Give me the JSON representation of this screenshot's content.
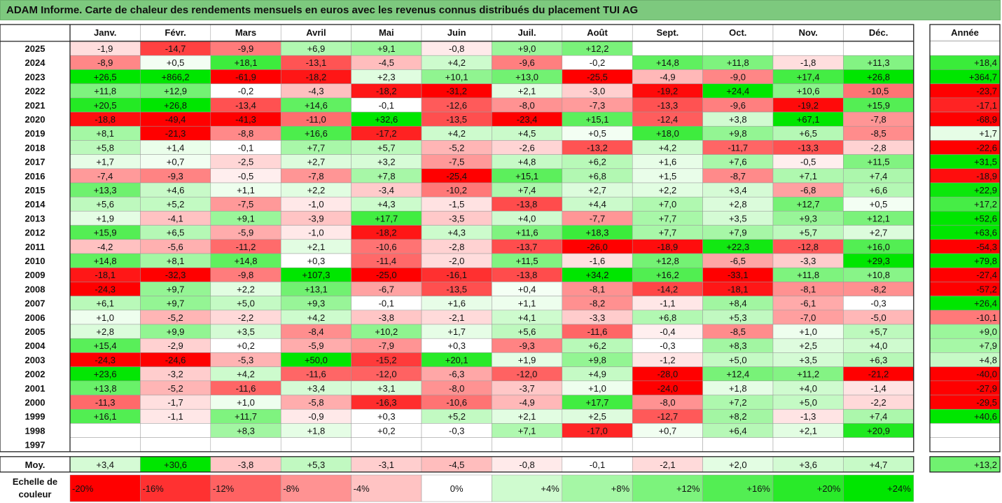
{
  "title": "ADAM Informe. Carte de chaleur des rendements mensuels en euros avec les revenus connus distribués du placement TUI AG",
  "colors": {
    "title_bg": "#7dc97e",
    "max_green": "#00e600",
    "max_red": "#ff0000"
  },
  "chart_data": {
    "type": "heatmap",
    "months": [
      "Janv.",
      "Févr.",
      "Mars",
      "Avril",
      "Mai",
      "Juin",
      "Juil.",
      "Août",
      "Sept.",
      "Oct.",
      "Nov.",
      "Déc."
    ],
    "year_header": "Année",
    "rows": [
      {
        "year": "2025",
        "values": [
          "-1,9",
          "-14,7",
          "-9,9",
          "+6,9",
          "+9,1",
          "-0,8",
          "+9,0",
          "+12,2",
          "",
          "",
          "",
          ""
        ],
        "annual": ""
      },
      {
        "year": "2024",
        "values": [
          "-8,9",
          "+0,5",
          "+18,1",
          "-13,1",
          "-4,5",
          "+4,2",
          "-9,6",
          "-0,2",
          "+14,8",
          "+11,8",
          "-1,8",
          "+11,3"
        ],
        "annual": "+18,4"
      },
      {
        "year": "2023",
        "values": [
          "+26,5",
          "+866,2",
          "-61,9",
          "-18,2",
          "+2,3",
          "+10,1",
          "+13,0",
          "-25,5",
          "-4,9",
          "-9,0",
          "+17,4",
          "+26,8"
        ],
        "annual": "+364,7"
      },
      {
        "year": "2022",
        "values": [
          "+11,8",
          "+12,9",
          "-0,2",
          "-4,3",
          "-18,2",
          "-31,2",
          "+2,1",
          "-3,0",
          "-19,2",
          "+24,4",
          "+10,6",
          "-10,5"
        ],
        "annual": "-23,7"
      },
      {
        "year": "2021",
        "values": [
          "+20,5",
          "+26,8",
          "-13,4",
          "+14,6",
          "-0,1",
          "-12,6",
          "-8,0",
          "-7,3",
          "-13,3",
          "-9,6",
          "-19,2",
          "+15,9"
        ],
        "annual": "-17,1"
      },
      {
        "year": "2020",
        "values": [
          "-18,8",
          "-49,4",
          "-41,3",
          "-11,0",
          "+32,6",
          "-13,5",
          "-23,4",
          "+15,1",
          "-12,4",
          "+3,8",
          "+67,1",
          "-7,8"
        ],
        "annual": "-68,9"
      },
      {
        "year": "2019",
        "values": [
          "+8,1",
          "-21,3",
          "-8,8",
          "+16,6",
          "-17,2",
          "+4,2",
          "+4,5",
          "+0,5",
          "+18,0",
          "+9,8",
          "+6,5",
          "-8,5"
        ],
        "annual": "+1,7"
      },
      {
        "year": "2018",
        "values": [
          "+5,8",
          "+1,4",
          "-0,1",
          "+7,7",
          "+5,7",
          "-5,2",
          "-2,6",
          "-13,2",
          "+4,2",
          "-11,7",
          "-13,3",
          "-2,8"
        ],
        "annual": "-22,6"
      },
      {
        "year": "2017",
        "values": [
          "+1,7",
          "+0,7",
          "-2,5",
          "+2,7",
          "+3,2",
          "-7,5",
          "+4,8",
          "+6,2",
          "+1,6",
          "+7,6",
          "-0,5",
          "+11,5"
        ],
        "annual": "+31,5"
      },
      {
        "year": "2016",
        "values": [
          "-7,4",
          "-9,3",
          "-0,5",
          "-7,8",
          "+7,8",
          "-25,4",
          "+15,1",
          "+6,8",
          "+1,5",
          "-8,7",
          "+7,1",
          "+7,4"
        ],
        "annual": "-18,9"
      },
      {
        "year": "2015",
        "values": [
          "+13,3",
          "+4,6",
          "+1,1",
          "+2,2",
          "-3,4",
          "-10,2",
          "+7,4",
          "+2,7",
          "+2,2",
          "+3,4",
          "-6,8",
          "+6,6"
        ],
        "annual": "+22,9"
      },
      {
        "year": "2014",
        "values": [
          "+5,6",
          "+5,2",
          "-7,5",
          "-1,0",
          "+4,3",
          "-1,5",
          "-13,8",
          "+4,4",
          "+7,0",
          "+2,8",
          "+12,7",
          "+0,5"
        ],
        "annual": "+17,2"
      },
      {
        "year": "2013",
        "values": [
          "+1,9",
          "-4,1",
          "+9,1",
          "-3,9",
          "+17,7",
          "-3,5",
          "+4,0",
          "-7,7",
          "+7,7",
          "+3,5",
          "+9,3",
          "+12,1"
        ],
        "annual": "+52,6"
      },
      {
        "year": "2012",
        "values": [
          "+15,9",
          "+6,5",
          "-5,9",
          "-1,0",
          "-18,2",
          "+4,3",
          "+11,6",
          "+18,3",
          "+7,7",
          "+7,9",
          "+5,7",
          "+2,7"
        ],
        "annual": "+63,6"
      },
      {
        "year": "2011",
        "values": [
          "-4,2",
          "-5,6",
          "-11,2",
          "+2,1",
          "-10,6",
          "-2,8",
          "-13,7",
          "-26,0",
          "-18,9",
          "+22,3",
          "-12,8",
          "+16,0"
        ],
        "annual": "-54,3"
      },
      {
        "year": "2010",
        "values": [
          "+14,8",
          "+8,1",
          "+14,8",
          "+0,3",
          "-11,4",
          "-2,0",
          "+11,5",
          "-1,6",
          "+12,8",
          "-6,5",
          "-3,3",
          "+29,3"
        ],
        "annual": "+79,8"
      },
      {
        "year": "2009",
        "values": [
          "-18,1",
          "-32,3",
          "-9,8",
          "+107,3",
          "-25,0",
          "-16,1",
          "-13,8",
          "+34,2",
          "+16,2",
          "-33,1",
          "+11,8",
          "+10,8"
        ],
        "annual": "-27,4"
      },
      {
        "year": "2008",
        "values": [
          "-24,3",
          "+9,7",
          "+2,2",
          "+13,1",
          "-6,7",
          "-13,5",
          "+0,4",
          "-8,1",
          "-14,2",
          "-18,1",
          "-8,1",
          "-8,2"
        ],
        "annual": "-57,2"
      },
      {
        "year": "2007",
        "values": [
          "+6,1",
          "+9,7",
          "+5,0",
          "+9,3",
          "-0,1",
          "+1,6",
          "+1,1",
          "-8,2",
          "-1,1",
          "+8,4",
          "-6,1",
          "-0,3"
        ],
        "annual": "+26,4"
      },
      {
        "year": "2006",
        "values": [
          "+1,0",
          "-5,2",
          "-2,2",
          "+4,2",
          "-3,8",
          "-2,1",
          "+4,1",
          "-3,3",
          "+6,8",
          "+5,3",
          "-7,0",
          "-5,0"
        ],
        "annual": "-10,1"
      },
      {
        "year": "2005",
        "values": [
          "+2,8",
          "+9,9",
          "+3,5",
          "-8,4",
          "+10,2",
          "+1,7",
          "+5,6",
          "-11,6",
          "-0,4",
          "-8,5",
          "+1,0",
          "+5,7"
        ],
        "annual": "+9,0"
      },
      {
        "year": "2004",
        "values": [
          "+15,4",
          "-2,9",
          "+0,2",
          "-5,9",
          "-7,9",
          "+0,3",
          "-9,3",
          "+6,2",
          "-0,3",
          "+8,3",
          "+2,5",
          "+4,0"
        ],
        "annual": "+7,9"
      },
      {
        "year": "2003",
        "values": [
          "-24,3",
          "-24,6",
          "-5,3",
          "+50,0",
          "-15,2",
          "+20,1",
          "+1,9",
          "+9,8",
          "-1,2",
          "+5,0",
          "+3,5",
          "+6,3"
        ],
        "annual": "+4,8"
      },
      {
        "year": "2002",
        "values": [
          "+23,6",
          "-3,2",
          "+4,2",
          "-11,6",
          "-12,0",
          "-6,3",
          "-12,0",
          "+4,9",
          "-28,0",
          "+12,4",
          "+11,2",
          "-21,2"
        ],
        "annual": "-40,0"
      },
      {
        "year": "2001",
        "values": [
          "+13,8",
          "-5,2",
          "-11,6",
          "+3,4",
          "+3,1",
          "-8,0",
          "-3,7",
          "+1,0",
          "-24,0",
          "+1,8",
          "+4,0",
          "-1,4"
        ],
        "annual": "-27,9"
      },
      {
        "year": "2000",
        "values": [
          "-11,3",
          "-1,7",
          "+1,0",
          "-5,8",
          "-16,3",
          "-10,6",
          "-4,9",
          "+17,7",
          "-8,0",
          "+7,2",
          "+5,0",
          "-2,2"
        ],
        "annual": "-29,5"
      },
      {
        "year": "1999",
        "values": [
          "+16,1",
          "-1,1",
          "+11,7",
          "-0,9",
          "+0,3",
          "+5,2",
          "+2,1",
          "+2,5",
          "-12,7",
          "+8,2",
          "-1,3",
          "+7,4"
        ],
        "annual": "+40,6"
      },
      {
        "year": "1998",
        "values": [
          "",
          "",
          "+8,3",
          "+1,8",
          "+0,2",
          "-0,3",
          "+7,1",
          "-17,0",
          "+0,7",
          "+6,4",
          "+2,1",
          "+20,9"
        ],
        "annual": ""
      },
      {
        "year": "1997",
        "values": [
          "",
          "",
          "",
          "",
          "",
          "",
          "",
          "",
          "",
          "",
          "",
          ""
        ],
        "annual": ""
      }
    ],
    "average": {
      "label": "Moy.",
      "values": [
        "+3,4",
        "+30,6",
        "-3,8",
        "+5,3",
        "-3,1",
        "-4,5",
        "-0,8",
        "-0,1",
        "-2,1",
        "+2,0",
        "+3,6",
        "+4,7"
      ],
      "annual": "+13,2"
    },
    "scale": {
      "label_line1": "Echelle de",
      "label_line2": "couleur",
      "stops": [
        {
          "label": "-20%",
          "value": -20
        },
        {
          "label": "-16%",
          "value": -16
        },
        {
          "label": "-12%",
          "value": -12
        },
        {
          "label": "-8%",
          "value": -8
        },
        {
          "label": "-4%",
          "value": -4
        },
        {
          "label": "0%",
          "value": 0
        },
        {
          "label": "+4%",
          "value": 4
        },
        {
          "label": "+8%",
          "value": 8
        },
        {
          "label": "+12%",
          "value": 12
        },
        {
          "label": "+16%",
          "value": 16
        },
        {
          "label": "+20%",
          "value": 20
        },
        {
          "label": "+24%",
          "value": 24
        }
      ]
    }
  }
}
